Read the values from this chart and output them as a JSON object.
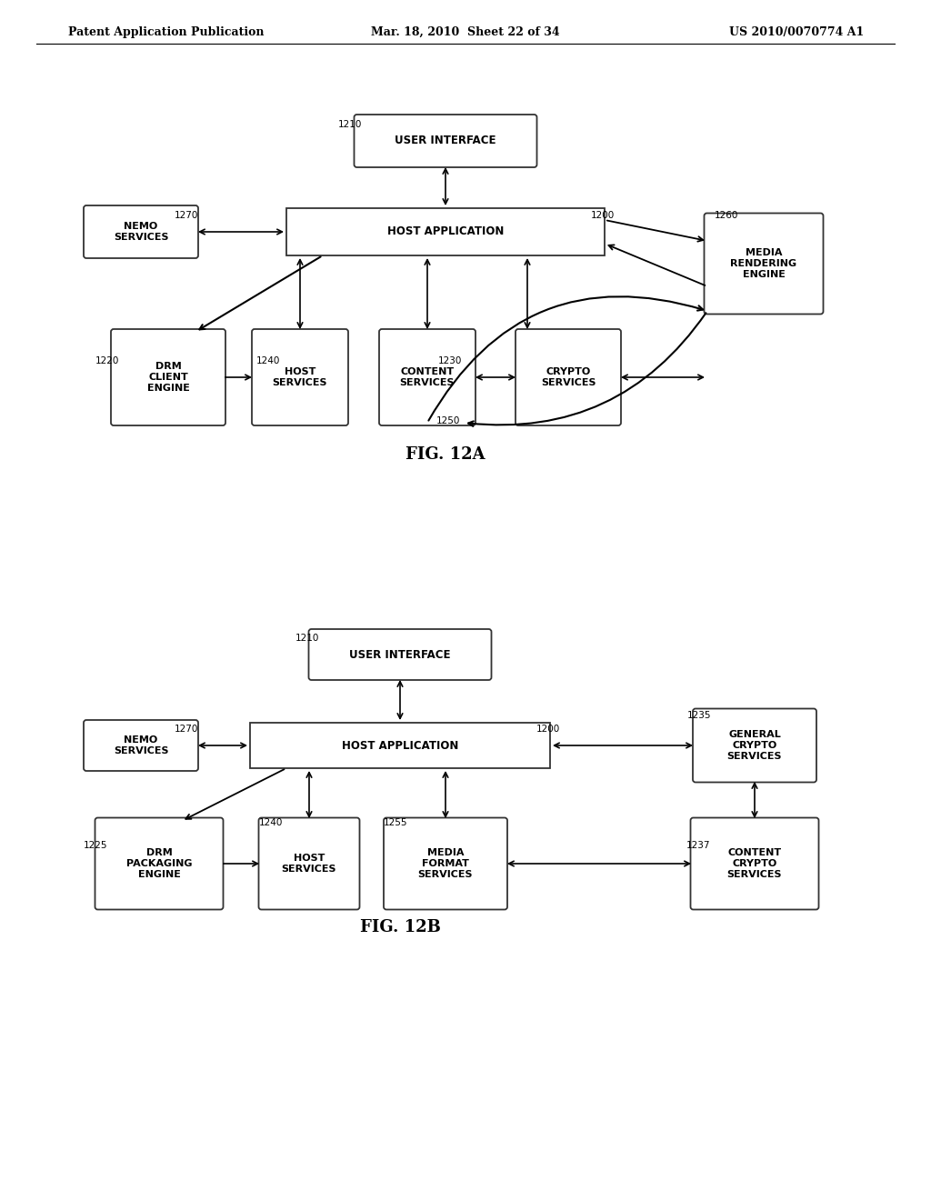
{
  "bg_color": "#ffffff",
  "header_left": "Patent Application Publication",
  "header_mid": "Mar. 18, 2010  Sheet 22 of 34",
  "header_right": "US 2010/0070774 A1",
  "fig12a_label": "FIG. 12A",
  "fig12b_label": "FIG. 12B"
}
